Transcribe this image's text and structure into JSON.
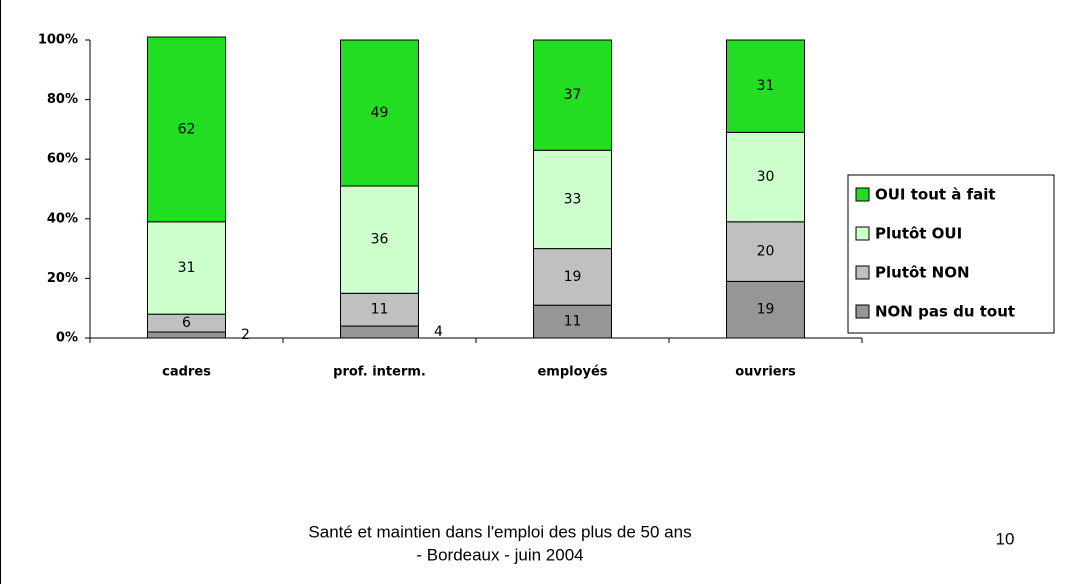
{
  "chart_data": {
    "type": "stacked_bar",
    "categories": [
      "cadres",
      "prof. interm.",
      "employés",
      "ouvriers"
    ],
    "series": [
      {
        "name": "NON pas du tout",
        "color": "#969696",
        "values": [
          2,
          4,
          11,
          19
        ]
      },
      {
        "name": "Plutôt NON",
        "color": "#c0c0c0",
        "values": [
          6,
          11,
          19,
          20
        ]
      },
      {
        "name": "Plutôt OUI",
        "color": "#ccffcc",
        "values": [
          31,
          36,
          33,
          30
        ]
      },
      {
        "name": "OUI tout à fait",
        "color": "#22dd22",
        "values": [
          62,
          49,
          37,
          31
        ]
      }
    ],
    "ylim": [
      0,
      100
    ],
    "yticks": [
      {
        "value": 0,
        "label": "0%"
      },
      {
        "value": 20,
        "label": "20%"
      },
      {
        "value": 40,
        "label": "40%"
      },
      {
        "value": 60,
        "label": "60%"
      },
      {
        "value": 80,
        "label": "80%"
      },
      {
        "value": 100,
        "label": "100%"
      }
    ],
    "legend": "right"
  },
  "footer": {
    "lines": [
      "Santé et maintien dans l'emploi des plus de 50 ans",
      "- Bordeaux - juin 2004"
    ],
    "page_number": "10"
  }
}
